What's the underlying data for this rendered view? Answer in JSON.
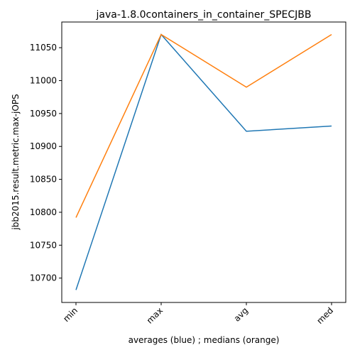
{
  "chart_data": {
    "type": "line",
    "title": "java-1.8.0containers_in_container_SPECJBB",
    "xlabel": "averages (blue) ; medians (orange)",
    "ylabel": "jbb2015.result.metric.max-jOPS",
    "categories": [
      "min",
      "max",
      "avg",
      "med"
    ],
    "series": [
      {
        "color": "#1f77b4",
        "values": [
          10682,
          11070,
          10923,
          10931
        ]
      },
      {
        "color": "#ff7f0e",
        "values": [
          10792,
          11070,
          10990,
          11070
        ]
      }
    ],
    "ylim": [
      10663,
      11089
    ],
    "yticks": [
      10700,
      10750,
      10800,
      10850,
      10900,
      10950,
      11000,
      11050
    ],
    "grid": false,
    "legend": "none"
  }
}
